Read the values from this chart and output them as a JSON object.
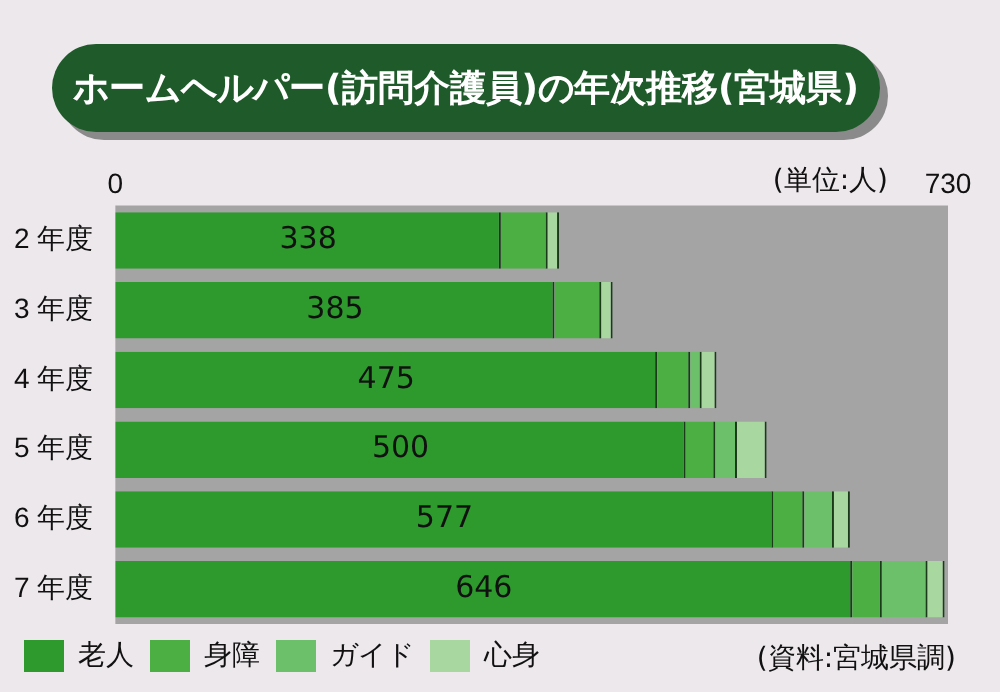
{
  "chart_data": {
    "type": "bar",
    "orientation": "horizontal",
    "stacked": true,
    "title": "ホームヘルパー(訪問介護員)の年次推移(宮城県)",
    "categories": [
      "2 年度",
      "3 年度",
      "4 年度",
      "5 年度",
      "6 年度",
      "7 年度"
    ],
    "series": [
      {
        "name": "老人",
        "color": "#2e9a2e",
        "values": [
          338,
          385,
          475,
          500,
          577,
          646
        ],
        "value_labels": [
          "338",
          "385",
          "475",
          "500",
          "577",
          "646"
        ]
      },
      {
        "name": "身障",
        "color": "#4caf44",
        "values": [
          41,
          41,
          29,
          26,
          27,
          26
        ]
      },
      {
        "name": "ガイド",
        "color": "#6cc06a",
        "values": [
          0,
          0,
          10,
          19,
          26,
          40
        ]
      },
      {
        "name": "心身",
        "color": "#a8d8a0",
        "values": [
          10,
          10,
          13,
          26,
          14,
          15
        ]
      }
    ],
    "xlim": [
      0,
      730
    ],
    "xticks": [
      0,
      730
    ],
    "grid": false,
    "legend": "bottom left",
    "annotations": [
      "(単位:人)",
      "(資料:宮城県調)"
    ]
  }
}
